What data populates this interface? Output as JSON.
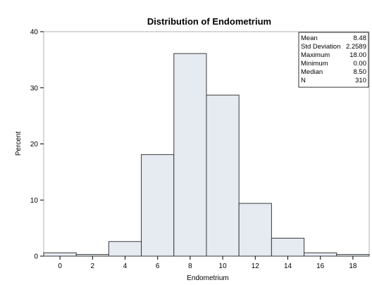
{
  "chart_data": {
    "type": "bar",
    "title": "Distribution of Endometrium",
    "xlabel": "Endometrium",
    "ylabel": "Percent",
    "xlim": [
      -1,
      19
    ],
    "ylim": [
      0,
      40
    ],
    "x_ticks": [
      0,
      2,
      4,
      6,
      8,
      10,
      12,
      14,
      16,
      18
    ],
    "y_ticks": [
      0,
      10,
      20,
      30,
      40
    ],
    "bins": [
      {
        "start": -1,
        "end": 1,
        "value": 0.6
      },
      {
        "start": 1,
        "end": 3,
        "value": 0.3
      },
      {
        "start": 3,
        "end": 5,
        "value": 2.6
      },
      {
        "start": 5,
        "end": 7,
        "value": 18.1
      },
      {
        "start": 7,
        "end": 9,
        "value": 36.1
      },
      {
        "start": 9,
        "end": 11,
        "value": 28.7
      },
      {
        "start": 11,
        "end": 13,
        "value": 9.4
      },
      {
        "start": 13,
        "end": 15,
        "value": 3.2
      },
      {
        "start": 15,
        "end": 17,
        "value": 0.6
      },
      {
        "start": 17,
        "end": 19,
        "value": 0.3
      }
    ],
    "bar_fill": "#e6ebf2",
    "bar_stroke": "#3a3a3a",
    "stats": [
      {
        "label": "Mean",
        "value": "8.48"
      },
      {
        "label": "Std Deviation",
        "value": "2.2589"
      },
      {
        "label": "Maximum",
        "value": "18.00"
      },
      {
        "label": "Minimum",
        "value": "0.00"
      },
      {
        "label": "Median",
        "value": "8.50"
      },
      {
        "label": "N",
        "value": "310"
      }
    ],
    "stats_placement": "top-right",
    "grid": false
  }
}
